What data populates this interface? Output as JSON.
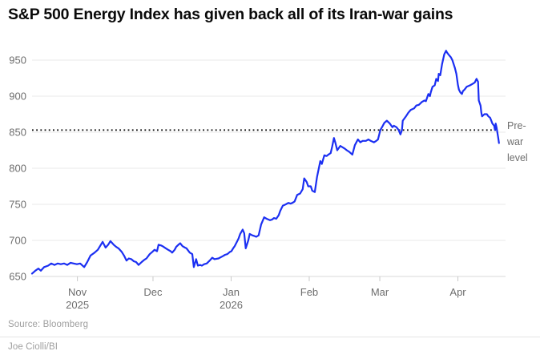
{
  "title": "S&P 500 Energy Index has given back all of its Iran-war gains",
  "footer": {
    "source": "Source: Bloomberg",
    "byline": "Joe Ciolli/BI"
  },
  "chart_data": {
    "type": "line",
    "title": "S&P 500 Energy Index has given back all of its Iran-war gains",
    "xlabel": "",
    "ylabel": "",
    "x_start_date": "2025-10-14",
    "x_unit": "days_since_start",
    "x_domain_days": [
      0,
      186
    ],
    "y_domain": [
      650,
      950
    ],
    "y_ticks": [
      650,
      700,
      750,
      800,
      850,
      900,
      950
    ],
    "x_ticks": [
      {
        "day": 18,
        "label": "Nov",
        "sublabel": "2025"
      },
      {
        "day": 48,
        "label": "Dec",
        "sublabel": ""
      },
      {
        "day": 79,
        "label": "Jan",
        "sublabel": "2026"
      },
      {
        "day": 110,
        "label": "Feb",
        "sublabel": ""
      },
      {
        "day": 138,
        "label": "Mar",
        "sublabel": ""
      },
      {
        "day": 169,
        "label": "Apr",
        "sublabel": ""
      }
    ],
    "grid": "horizontal",
    "legend": "none",
    "reference_line": {
      "value": 853,
      "label": "Pre-war level",
      "style": "dotted",
      "color": "#111111"
    },
    "colors": {
      "line": "#1b2ff2",
      "grid": "#e9e9e9",
      "axis": "#d8d8d8",
      "tick": "#c9c9c9",
      "axis_text": "#6e6e6e"
    },
    "series": [
      {
        "name": "S&P 500 Energy Index",
        "points": [
          [
            0,
            654
          ],
          [
            1.3,
            658
          ],
          [
            2.5,
            661
          ],
          [
            3.5,
            658
          ],
          [
            4.8,
            663
          ],
          [
            6.4,
            665
          ],
          [
            7.6,
            668
          ],
          [
            8.9,
            666
          ],
          [
            10.2,
            668
          ],
          [
            11.4,
            667
          ],
          [
            12.7,
            668
          ],
          [
            14,
            666
          ],
          [
            15.3,
            669
          ],
          [
            16.5,
            668
          ],
          [
            17.8,
            667
          ],
          [
            19.1,
            668
          ],
          [
            20.7,
            663
          ],
          [
            21.9,
            670
          ],
          [
            23.2,
            679
          ],
          [
            24.8,
            683
          ],
          [
            26.1,
            687
          ],
          [
            27.3,
            694
          ],
          [
            28,
            698
          ],
          [
            29.2,
            690
          ],
          [
            30.2,
            694
          ],
          [
            31.1,
            699
          ],
          [
            32.4,
            694
          ],
          [
            33.4,
            691
          ],
          [
            34.3,
            689
          ],
          [
            35.6,
            684
          ],
          [
            36.5,
            679
          ],
          [
            37.5,
            672
          ],
          [
            38.4,
            675
          ],
          [
            39.4,
            674
          ],
          [
            40.4,
            671
          ],
          [
            41.3,
            670
          ],
          [
            42.3,
            666
          ],
          [
            43.5,
            670
          ],
          [
            44.5,
            673
          ],
          [
            45.4,
            675
          ],
          [
            46.7,
            681
          ],
          [
            47.7,
            684
          ],
          [
            48.6,
            687
          ],
          [
            49.6,
            685
          ],
          [
            50.2,
            694
          ],
          [
            51.2,
            693
          ],
          [
            51.8,
            692
          ],
          [
            53.1,
            689
          ],
          [
            54,
            687
          ],
          [
            55,
            685
          ],
          [
            55.6,
            683
          ],
          [
            56.6,
            687
          ],
          [
            57.2,
            691
          ],
          [
            58.1,
            694
          ],
          [
            58.8,
            696
          ],
          [
            59.7,
            692
          ],
          [
            60.7,
            690
          ],
          [
            61.3,
            689
          ],
          [
            62.6,
            683
          ],
          [
            63.6,
            681
          ],
          [
            64.2,
            663
          ],
          [
            65.1,
            674
          ],
          [
            65.8,
            665
          ],
          [
            66.7,
            666
          ],
          [
            67.4,
            665
          ],
          [
            68.3,
            667
          ],
          [
            69.3,
            668
          ],
          [
            70.5,
            672
          ],
          [
            71.5,
            676
          ],
          [
            72.4,
            674
          ],
          [
            74,
            675
          ],
          [
            75.6,
            678
          ],
          [
            76.6,
            680
          ],
          [
            77.5,
            681
          ],
          [
            78.5,
            684
          ],
          [
            79.1,
            685
          ],
          [
            79.8,
            689
          ],
          [
            80.4,
            692
          ],
          [
            81.3,
            698
          ],
          [
            82,
            703
          ],
          [
            82.6,
            709
          ],
          [
            83.6,
            715
          ],
          [
            84.2,
            710
          ],
          [
            84.8,
            689
          ],
          [
            85.8,
            700
          ],
          [
            86.4,
            709
          ],
          [
            87.4,
            707
          ],
          [
            88.3,
            706
          ],
          [
            89,
            705
          ],
          [
            89.9,
            707
          ],
          [
            90.9,
            722
          ],
          [
            92.1,
            732
          ],
          [
            93.1,
            730
          ],
          [
            94.4,
            728
          ],
          [
            95.3,
            729
          ],
          [
            96,
            731
          ],
          [
            96.9,
            730
          ],
          [
            97.9,
            735
          ],
          [
            98.5,
            741
          ],
          [
            99.5,
            748
          ],
          [
            100.7,
            750
          ],
          [
            101.7,
            752
          ],
          [
            102.6,
            751
          ],
          [
            103.3,
            752
          ],
          [
            104.2,
            754
          ],
          [
            105.2,
            763
          ],
          [
            106.4,
            765
          ],
          [
            107.4,
            771
          ],
          [
            108,
            786
          ],
          [
            109,
            781
          ],
          [
            109.6,
            775
          ],
          [
            110.6,
            775
          ],
          [
            111.2,
            769
          ],
          [
            112.2,
            767
          ],
          [
            113.1,
            788
          ],
          [
            114.4,
            810
          ],
          [
            115,
            806
          ],
          [
            116,
            818
          ],
          [
            116.9,
            817
          ],
          [
            117.6,
            819
          ],
          [
            118.5,
            821
          ],
          [
            119.1,
            830
          ],
          [
            119.8,
            842
          ],
          [
            120.4,
            835
          ],
          [
            121.1,
            825
          ],
          [
            122.3,
            831
          ],
          [
            123.3,
            829
          ],
          [
            124.2,
            827
          ],
          [
            124.9,
            825
          ],
          [
            125.8,
            823
          ],
          [
            127.1,
            819
          ],
          [
            128.1,
            832
          ],
          [
            129.3,
            840
          ],
          [
            130.3,
            836
          ],
          [
            131.2,
            838
          ],
          [
            132.5,
            838
          ],
          [
            133.5,
            840
          ],
          [
            134.4,
            838
          ],
          [
            135.7,
            836
          ],
          [
            136.6,
            838
          ],
          [
            137.3,
            840
          ],
          [
            138.2,
            853
          ],
          [
            139.2,
            859
          ],
          [
            139.8,
            863
          ],
          [
            140.8,
            866
          ],
          [
            142,
            862
          ],
          [
            143,
            857
          ],
          [
            143.6,
            859
          ],
          [
            144.6,
            857
          ],
          [
            145.5,
            853
          ],
          [
            146.2,
            847
          ],
          [
            146.8,
            853
          ],
          [
            147.1,
            866
          ],
          [
            148.4,
            872
          ],
          [
            149.3,
            877
          ],
          [
            150.3,
            881
          ],
          [
            151.6,
            883
          ],
          [
            152.5,
            887
          ],
          [
            153.5,
            888
          ],
          [
            154.7,
            892
          ],
          [
            155.7,
            894
          ],
          [
            156.3,
            893
          ],
          [
            156.6,
            896
          ],
          [
            157.3,
            903
          ],
          [
            157.9,
            900
          ],
          [
            158.2,
            905
          ],
          [
            158.9,
            913
          ],
          [
            159.8,
            915
          ],
          [
            160.4,
            924
          ],
          [
            161.1,
            921
          ],
          [
            161.4,
            931
          ],
          [
            162,
            929
          ],
          [
            162.7,
            944
          ],
          [
            163.6,
            958
          ],
          [
            164.3,
            963
          ],
          [
            164.6,
            961
          ],
          [
            165.2,
            958
          ],
          [
            166.2,
            954
          ],
          [
            166.8,
            950
          ],
          [
            167.8,
            939
          ],
          [
            168.4,
            931
          ],
          [
            169,
            916
          ],
          [
            169.4,
            909
          ],
          [
            170,
            905
          ],
          [
            170.6,
            903
          ],
          [
            171,
            907
          ],
          [
            171.6,
            909
          ],
          [
            172.5,
            913
          ],
          [
            173.8,
            915
          ],
          [
            174.8,
            917
          ],
          [
            175.7,
            919
          ],
          [
            176.4,
            924
          ],
          [
            177,
            920
          ],
          [
            177.3,
            894
          ],
          [
            178,
            887
          ],
          [
            178.3,
            877
          ],
          [
            178.6,
            872
          ],
          [
            179.5,
            875
          ],
          [
            180.5,
            875
          ],
          [
            181.1,
            872
          ],
          [
            181.8,
            870
          ],
          [
            182.7,
            862
          ],
          [
            183.4,
            859
          ],
          [
            183.7,
            853
          ],
          [
            184,
            862
          ],
          [
            184.3,
            857
          ],
          [
            185,
            842
          ],
          [
            185.3,
            835
          ]
        ]
      }
    ]
  }
}
